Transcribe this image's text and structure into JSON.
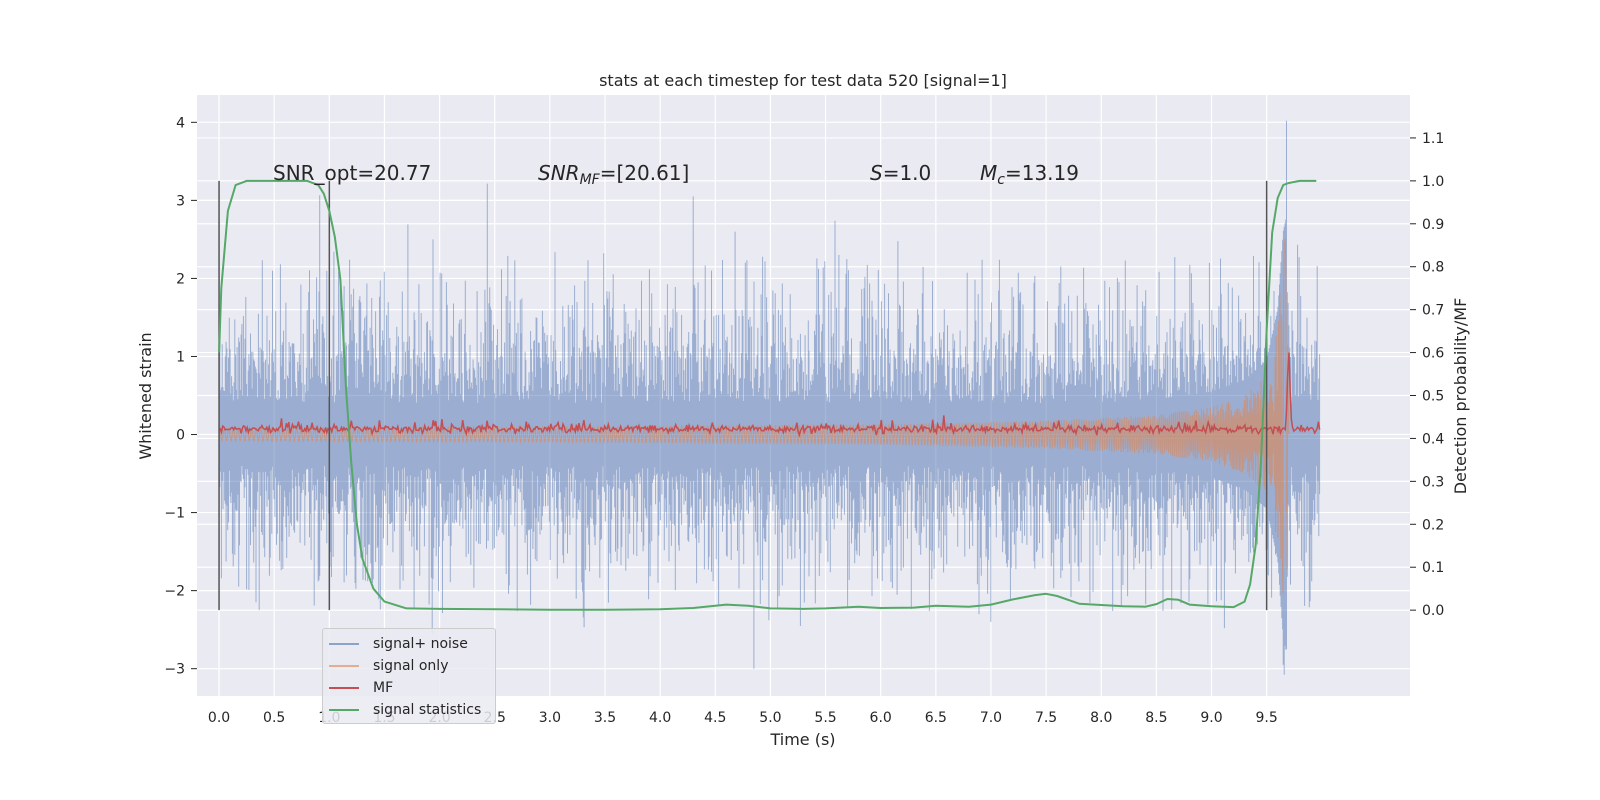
{
  "chart_data": {
    "type": "line",
    "title": "stats at each timestep for test data 520 [signal=1]",
    "xlabel": "Time (s)",
    "ylabel": "Whitened strain",
    "y2label": "Detection probability/MF",
    "xlim": [
      -0.2,
      10.8
    ],
    "ylim": [
      -3.35,
      4.35
    ],
    "y2lim": [
      -0.2,
      1.2
    ],
    "xticks": [
      "0.0",
      "0.5",
      "1.0",
      "1.5",
      "2.0",
      "2.5",
      "3.0",
      "3.5",
      "4.0",
      "4.5",
      "5.0",
      "5.5",
      "6.0",
      "6.5",
      "7.0",
      "7.5",
      "8.0",
      "8.5",
      "9.0",
      "9.5"
    ],
    "yticks": [
      "4",
      "3",
      "2",
      "1",
      "0",
      "−1",
      "−2",
      "−3"
    ],
    "y2ticks": [
      "1.1",
      "1.0",
      "0.9",
      "0.8",
      "0.7",
      "0.6",
      "0.5",
      "0.4",
      "0.3",
      "0.2",
      "0.1",
      "0.0"
    ],
    "grid": true,
    "legend_position": "lower-left",
    "annotations": {
      "snr_opt": "SNR_opt=20.77",
      "snr_mf_sym": "SNR",
      "snr_mf_sub": "MF",
      "snr_mf_val": "=[20.61]",
      "s_sym": "S",
      "s_val": "=1.0",
      "mc_sym": "M",
      "mc_sub": "c",
      "mc_val": "=13.19"
    },
    "vertical_markers_x": [
      0.0,
      1.0,
      9.5
    ],
    "series": [
      {
        "name": "signal+ noise",
        "color": "#4c72b0",
        "axis": "left",
        "description_range": [
          -3.0,
          4.05
        ],
        "peaks": [
          [
            4.3,
            3.05
          ],
          [
            4.85,
            -3.0
          ],
          [
            9.68,
            4.02
          ],
          [
            9.65,
            -2.95
          ]
        ]
      },
      {
        "name": "signal only",
        "color": "#dd8452",
        "axis": "left",
        "x": [
          0.0,
          3.0,
          6.0,
          7.5,
          8.5,
          9.0,
          9.3,
          9.5,
          9.6,
          9.65,
          9.68,
          9.7
        ],
        "amplitude": [
          0.08,
          0.1,
          0.13,
          0.18,
          0.25,
          0.35,
          0.5,
          0.75,
          1.4,
          2.4,
          2.6,
          0.0
        ]
      },
      {
        "name": "MF",
        "color": "#c44e52",
        "axis": "left",
        "baseline": 0.07,
        "peak": [
          9.7,
          0.95
        ]
      },
      {
        "name": "signal statistics",
        "color": "#55a868",
        "axis": "right",
        "x": [
          0.0,
          0.02,
          0.08,
          0.15,
          0.25,
          0.4,
          0.6,
          0.8,
          0.9,
          0.95,
          1.0,
          1.05,
          1.1,
          1.15,
          1.2,
          1.25,
          1.3,
          1.4,
          1.5,
          1.7,
          2.0,
          2.5,
          3.0,
          3.5,
          4.0,
          4.3,
          4.6,
          4.8,
          5.0,
          5.3,
          5.5,
          5.8,
          6.0,
          6.3,
          6.5,
          6.8,
          7.0,
          7.2,
          7.4,
          7.5,
          7.6,
          7.8,
          8.0,
          8.2,
          8.4,
          8.5,
          8.6,
          8.7,
          8.8,
          9.0,
          9.2,
          9.3,
          9.35,
          9.4,
          9.45,
          9.5,
          9.55,
          9.6,
          9.65,
          9.7,
          9.8,
          9.9,
          9.95
        ],
        "y": [
          0.6,
          0.75,
          0.93,
          0.99,
          1.0,
          1.0,
          1.0,
          1.0,
          0.99,
          0.97,
          0.93,
          0.87,
          0.77,
          0.52,
          0.34,
          0.2,
          0.12,
          0.05,
          0.02,
          0.004,
          0.003,
          0.002,
          0.001,
          0.001,
          0.002,
          0.005,
          0.013,
          0.01,
          0.004,
          0.003,
          0.004,
          0.008,
          0.005,
          0.006,
          0.01,
          0.008,
          0.013,
          0.025,
          0.035,
          0.038,
          0.033,
          0.015,
          0.012,
          0.009,
          0.008,
          0.014,
          0.026,
          0.024,
          0.013,
          0.009,
          0.007,
          0.02,
          0.06,
          0.15,
          0.35,
          0.65,
          0.88,
          0.96,
          0.99,
          0.995,
          1.0,
          1.0,
          1.0
        ]
      }
    ]
  }
}
